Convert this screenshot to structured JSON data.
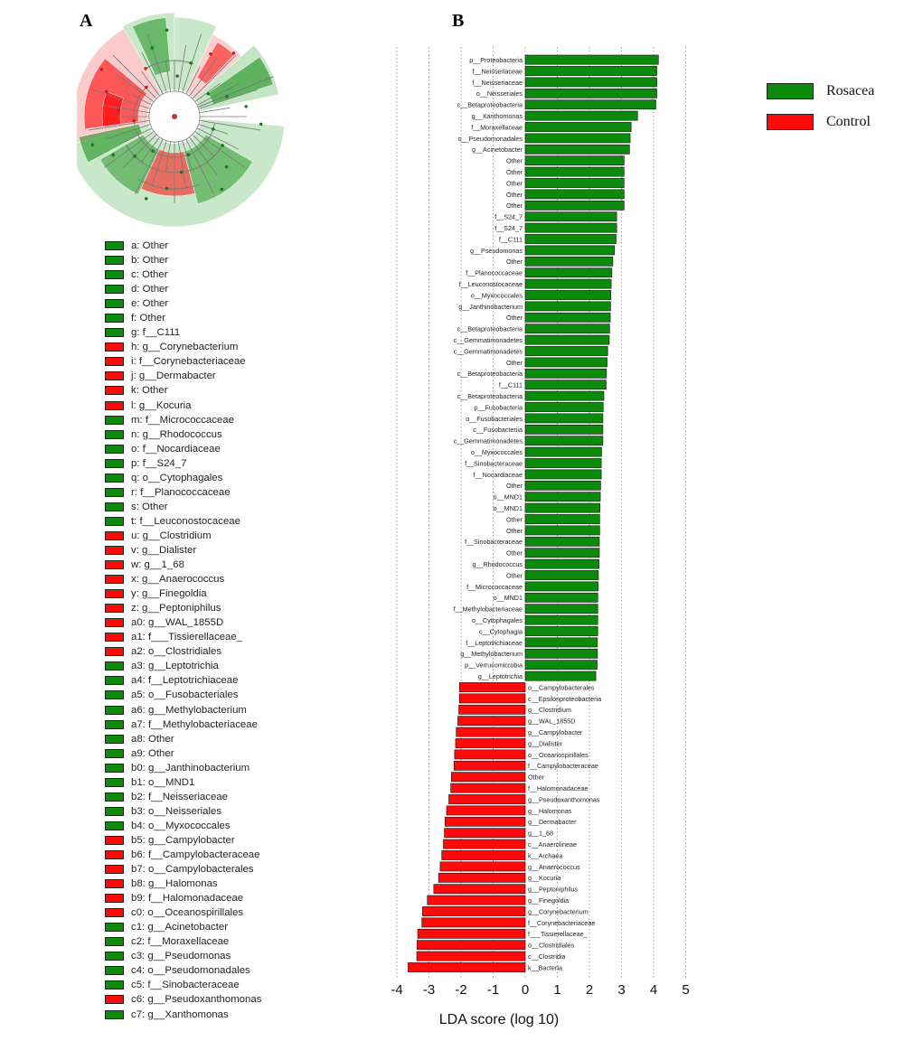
{
  "panel_labels": {
    "a": "A",
    "b": "B"
  },
  "colors": {
    "rosacea": "#0b8a0b",
    "control": "#ff0a0a",
    "rosacea_light": "#9cd49c",
    "control_light": "#f6a8a8",
    "branch": "#777777"
  },
  "series_legend": [
    {
      "label": "Rosacea",
      "color": "#0b8a0b"
    },
    {
      "label": "Control",
      "color": "#ff0a0a"
    }
  ],
  "taxa_legend": [
    {
      "key": "a",
      "text": "a: Other",
      "group": "rosacea"
    },
    {
      "key": "b",
      "text": "b: Other",
      "group": "rosacea"
    },
    {
      "key": "c",
      "text": "c: Other",
      "group": "rosacea"
    },
    {
      "key": "d",
      "text": "d: Other",
      "group": "rosacea"
    },
    {
      "key": "e",
      "text": "e: Other",
      "group": "rosacea"
    },
    {
      "key": "f",
      "text": "f: Other",
      "group": "rosacea"
    },
    {
      "key": "g",
      "text": "g: f__C111",
      "group": "rosacea"
    },
    {
      "key": "h",
      "text": "h: g__Corynebacterium",
      "group": "control"
    },
    {
      "key": "i",
      "text": "i: f__Corynebacteriaceae",
      "group": "control"
    },
    {
      "key": "j",
      "text": "j: g__Dermabacter",
      "group": "control"
    },
    {
      "key": "k",
      "text": "k: Other",
      "group": "control"
    },
    {
      "key": "l",
      "text": "l: g__Kocuria",
      "group": "control"
    },
    {
      "key": "m",
      "text": "m: f__Micrococcaceae",
      "group": "rosacea"
    },
    {
      "key": "n",
      "text": "n: g__Rhodococcus",
      "group": "rosacea"
    },
    {
      "key": "o",
      "text": "o: f__Nocardiaceae",
      "group": "rosacea"
    },
    {
      "key": "p",
      "text": "p: f__S24_7",
      "group": "rosacea"
    },
    {
      "key": "q",
      "text": "q: o__Cytophagales",
      "group": "rosacea"
    },
    {
      "key": "r",
      "text": "r: f__Planococcaceae",
      "group": "rosacea"
    },
    {
      "key": "s",
      "text": "s: Other",
      "group": "rosacea"
    },
    {
      "key": "t",
      "text": "t: f__Leuconostocaceae",
      "group": "rosacea"
    },
    {
      "key": "u",
      "text": "u: g__Clostridium",
      "group": "control"
    },
    {
      "key": "v",
      "text": "v: g__Dialister",
      "group": "control"
    },
    {
      "key": "w",
      "text": "w: g__1_68",
      "group": "control"
    },
    {
      "key": "x",
      "text": "x: g__Anaerococcus",
      "group": "control"
    },
    {
      "key": "y",
      "text": "y: g__Finegoldia",
      "group": "control"
    },
    {
      "key": "z",
      "text": "z: g__Peptoniphilus",
      "group": "control"
    },
    {
      "key": "a0",
      "text": "a0: g__WAL_1855D",
      "group": "control"
    },
    {
      "key": "a1",
      "text": "a1: f___Tissierellaceae_",
      "group": "control"
    },
    {
      "key": "a2",
      "text": "a2: o__Clostridiales",
      "group": "control"
    },
    {
      "key": "a3",
      "text": "a3: g__Leptotrichia",
      "group": "rosacea"
    },
    {
      "key": "a4",
      "text": "a4: f__Leptotrichiaceae",
      "group": "rosacea"
    },
    {
      "key": "a5",
      "text": "a5: o__Fusobacteriales",
      "group": "rosacea"
    },
    {
      "key": "a6",
      "text": "a6: g__Methylobacterium",
      "group": "rosacea"
    },
    {
      "key": "a7",
      "text": "a7: f__Methylobacteriaceae",
      "group": "rosacea"
    },
    {
      "key": "a8",
      "text": "a8: Other",
      "group": "rosacea"
    },
    {
      "key": "a9",
      "text": "a9: Other",
      "group": "rosacea"
    },
    {
      "key": "b0",
      "text": "b0: g__Janthinobacterium",
      "group": "rosacea"
    },
    {
      "key": "b1",
      "text": "b1: o__MND1",
      "group": "rosacea"
    },
    {
      "key": "b2",
      "text": "b2: f__Neisseriaceae",
      "group": "rosacea"
    },
    {
      "key": "b3",
      "text": "b3: o__Neisseriales",
      "group": "rosacea"
    },
    {
      "key": "b4",
      "text": "b4: o__Myxococcales",
      "group": "rosacea"
    },
    {
      "key": "b5",
      "text": "b5: g__Campylobacter",
      "group": "control"
    },
    {
      "key": "b6",
      "text": "b6: f__Campylobacteraceae",
      "group": "control"
    },
    {
      "key": "b7",
      "text": "b7: o__Campylobacterales",
      "group": "control"
    },
    {
      "key": "b8",
      "text": "b8: g__Halomonas",
      "group": "control"
    },
    {
      "key": "b9",
      "text": "b9: f__Halomonadaceae",
      "group": "control"
    },
    {
      "key": "c0",
      "text": "c0: o__Oceanospirillales",
      "group": "control"
    },
    {
      "key": "c1",
      "text": "c1: g__Acinetobacter",
      "group": "rosacea"
    },
    {
      "key": "c2",
      "text": "c2: f__Moraxellaceae",
      "group": "rosacea"
    },
    {
      "key": "c3",
      "text": "c3: g__Pseudomonas",
      "group": "rosacea"
    },
    {
      "key": "c4",
      "text": "c4: o__Pseudomonadales",
      "group": "rosacea"
    },
    {
      "key": "c5",
      "text": "c5: f__Sinobacteraceae",
      "group": "rosacea"
    },
    {
      "key": "c6",
      "text": "c6: g__Pseudoxanthomonas",
      "group": "control"
    },
    {
      "key": "c7",
      "text": "c7: g__Xanthomonas",
      "group": "rosacea"
    }
  ],
  "chart_data": {
    "type": "bar",
    "orientation": "horizontal",
    "xlabel": "LDA score (log 10)",
    "xlim": [
      -4,
      5
    ],
    "xticks": [
      -4,
      -3,
      -2,
      -1,
      0,
      1,
      2,
      3,
      4,
      5
    ],
    "grid": "vertical dotted",
    "legend_position": "top-right",
    "series": [
      {
        "name": "Rosacea",
        "color": "#0b8a0b",
        "bars": [
          {
            "label": "p__Proteobacteria",
            "value": 4.15
          },
          {
            "label": "f__Neisseriaceae",
            "value": 4.1
          },
          {
            "label": "f__Neisseriaceae",
            "value": 4.1
          },
          {
            "label": "o__Neisseriales",
            "value": 4.1
          },
          {
            "label": "c__Betaproteobacteria",
            "value": 4.07
          },
          {
            "label": "g__Xanthomonas",
            "value": 3.5
          },
          {
            "label": "f__Moraxellaceae",
            "value": 3.3
          },
          {
            "label": "o__Pseudomonadales",
            "value": 3.27
          },
          {
            "label": "g__Acinetobacter",
            "value": 3.25
          },
          {
            "label": "Other",
            "value": 3.08
          },
          {
            "label": "Other",
            "value": 3.08
          },
          {
            "label": "Other",
            "value": 3.08
          },
          {
            "label": "Other",
            "value": 3.08
          },
          {
            "label": "Other",
            "value": 3.08
          },
          {
            "label": "f__S24_7",
            "value": 2.85
          },
          {
            "label": "f__S24_7",
            "value": 2.85
          },
          {
            "label": "f__C111",
            "value": 2.83
          },
          {
            "label": "g__Pseudomonas",
            "value": 2.78
          },
          {
            "label": "Other",
            "value": 2.73
          },
          {
            "label": "f__Planococcaceae",
            "value": 2.7
          },
          {
            "label": "f__Leuconostocaceae",
            "value": 2.68
          },
          {
            "label": "o__Myxococcales",
            "value": 2.67
          },
          {
            "label": "g__Janthinobacterium",
            "value": 2.66
          },
          {
            "label": "Other",
            "value": 2.65
          },
          {
            "label": "c__Betaproteobacteria",
            "value": 2.63
          },
          {
            "label": "c__Gemmatimonadetes",
            "value": 2.62
          },
          {
            "label": "c__Gemmatimonadetes",
            "value": 2.57
          },
          {
            "label": "Other",
            "value": 2.55
          },
          {
            "label": "c__Betaproteobacteria",
            "value": 2.53
          },
          {
            "label": "f__C111",
            "value": 2.52
          },
          {
            "label": "c__Betaproteobacteria",
            "value": 2.45
          },
          {
            "label": "p__Fusobacteria",
            "value": 2.43
          },
          {
            "label": "o__Fusobacteriales",
            "value": 2.42
          },
          {
            "label": "c__Fusobacteriia",
            "value": 2.42
          },
          {
            "label": "c__Gemmatimonadetes",
            "value": 2.42
          },
          {
            "label": "o__Myxococcales",
            "value": 2.38
          },
          {
            "label": "f__Sinobacteraceae",
            "value": 2.37
          },
          {
            "label": "f__Nocardiaceae",
            "value": 2.37
          },
          {
            "label": "Other",
            "value": 2.35
          },
          {
            "label": "o__MND1",
            "value": 2.34
          },
          {
            "label": "o__MND1",
            "value": 2.33
          },
          {
            "label": "Other",
            "value": 2.32
          },
          {
            "label": "Other",
            "value": 2.32
          },
          {
            "label": "f__Sinobacteraceae",
            "value": 2.31
          },
          {
            "label": "Other",
            "value": 2.31
          },
          {
            "label": "g__Rhodococcus",
            "value": 2.3
          },
          {
            "label": "Other",
            "value": 2.28
          },
          {
            "label": "f__Micrococcaceae",
            "value": 2.27
          },
          {
            "label": "o__MND1",
            "value": 2.26
          },
          {
            "label": "f__Methylobacteriaceae",
            "value": 2.26
          },
          {
            "label": "o__Cytophagales",
            "value": 2.26
          },
          {
            "label": "c__Cytophagia",
            "value": 2.26
          },
          {
            "label": "f__Leptotrichiaceae",
            "value": 2.25
          },
          {
            "label": "g__Methylobacterium",
            "value": 2.25
          },
          {
            "label": "p__Verrucomicrobia",
            "value": 2.24
          },
          {
            "label": "g__Leptotrichia",
            "value": 2.2
          }
        ]
      },
      {
        "name": "Control",
        "color": "#ff0a0a",
        "bars": [
          {
            "label": "o__Campylobacterales",
            "value": -2.05
          },
          {
            "label": "c__Epsilonproteobacteria",
            "value": -2.05
          },
          {
            "label": "g__Clostridium",
            "value": -2.07
          },
          {
            "label": "g__WAL_1855D",
            "value": -2.1
          },
          {
            "label": "g__Campylobacter",
            "value": -2.15
          },
          {
            "label": "g__Dialister",
            "value": -2.17
          },
          {
            "label": "o__Oceanospirillales",
            "value": -2.2
          },
          {
            "label": "f__Campylobacteraceae",
            "value": -2.22
          },
          {
            "label": "Other",
            "value": -2.3
          },
          {
            "label": "f__Halomonadaceae",
            "value": -2.32
          },
          {
            "label": "g__Pseudoxanthomonas",
            "value": -2.38
          },
          {
            "label": "g__Halomonas",
            "value": -2.45
          },
          {
            "label": "g__Dermabacter",
            "value": -2.5
          },
          {
            "label": "g__1_68",
            "value": -2.52
          },
          {
            "label": "c__Anaerolineae",
            "value": -2.55
          },
          {
            "label": "k__Archaea",
            "value": -2.6
          },
          {
            "label": "g__Anaerococcus",
            "value": -2.65
          },
          {
            "label": "g__Kocuria",
            "value": -2.7
          },
          {
            "label": "g__Peptoniphilus",
            "value": -2.85
          },
          {
            "label": "g__Finegoldia",
            "value": -3.05
          },
          {
            "label": "g__Corynebacterium",
            "value": -3.2
          },
          {
            "label": "f__Corynebacteriaceae",
            "value": -3.22
          },
          {
            "label": "f___Tissierellaceae_",
            "value": -3.35
          },
          {
            "label": "o__Clostridiales",
            "value": -3.37
          },
          {
            "label": "c__Clostridia",
            "value": -3.38
          },
          {
            "label": "k__Bacteria",
            "value": -3.65
          }
        ]
      }
    ]
  }
}
